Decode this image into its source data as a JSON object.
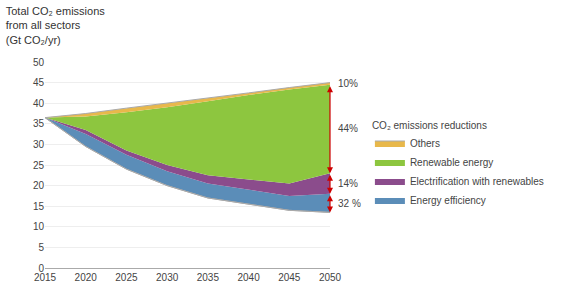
{
  "chart_data": {
    "type": "area",
    "title": "Total CO₂ emissions\nfrom all sectors\n(Gt CO₂/yr)",
    "legend_title": "CO₂ emissions reductions",
    "x": [
      2015,
      2020,
      2025,
      2030,
      2035,
      2040,
      2045,
      2050
    ],
    "series": [
      {
        "color": "#AAAAAA",
        "type": "line",
        "values": [
          36.5,
          29.5,
          24.0,
          20.0,
          17.0,
          15.5,
          14.0,
          13.5
        ]
      },
      {
        "name": "Energy efficiency",
        "color": "#5B8DB8",
        "values": [
          36.5,
          32.5,
          27.5,
          23.5,
          20.5,
          19.0,
          17.5,
          18.0
        ]
      },
      {
        "name": "Electrification with renewables",
        "color": "#8B4C8C",
        "values": [
          36.5,
          33.5,
          28.5,
          25.0,
          22.5,
          21.5,
          20.5,
          23.0
        ]
      },
      {
        "name": "Renewable energy",
        "color": "#8DC63F",
        "values": [
          36.5,
          36.8,
          37.8,
          39.0,
          40.5,
          42.0,
          43.3,
          44.5
        ]
      },
      {
        "name": "Others",
        "color": "#E8B84B",
        "values": [
          36.5,
          37.5,
          38.8,
          40.0,
          41.2,
          42.5,
          43.8,
          45.0
        ]
      }
    ],
    "xlim": [
      2015,
      2050
    ],
    "xticks": [
      2015,
      2020,
      2025,
      2030,
      2035,
      2040,
      2045,
      2050
    ],
    "ylim": [
      0,
      50
    ],
    "yticks": [
      0,
      5,
      10,
      15,
      20,
      25,
      30,
      35,
      40,
      45,
      50
    ],
    "grid": true,
    "legend": "right",
    "stacked": false,
    "annotations": [
      {
        "text": "10%",
        "x": 2050,
        "from": 45.0,
        "to": 44.5,
        "color": "#CC0000"
      },
      {
        "text": "44%",
        "x": 2050,
        "from": 44.5,
        "to": 23.0,
        "color": "#CC0000"
      },
      {
        "text": "14%",
        "x": 2050,
        "from": 23.0,
        "to": 18.0,
        "color": "#CC0000"
      },
      {
        "text": "32 %",
        "x": 2050,
        "from": 18.0,
        "to": 13.5,
        "color": "#CC0000"
      }
    ]
  }
}
